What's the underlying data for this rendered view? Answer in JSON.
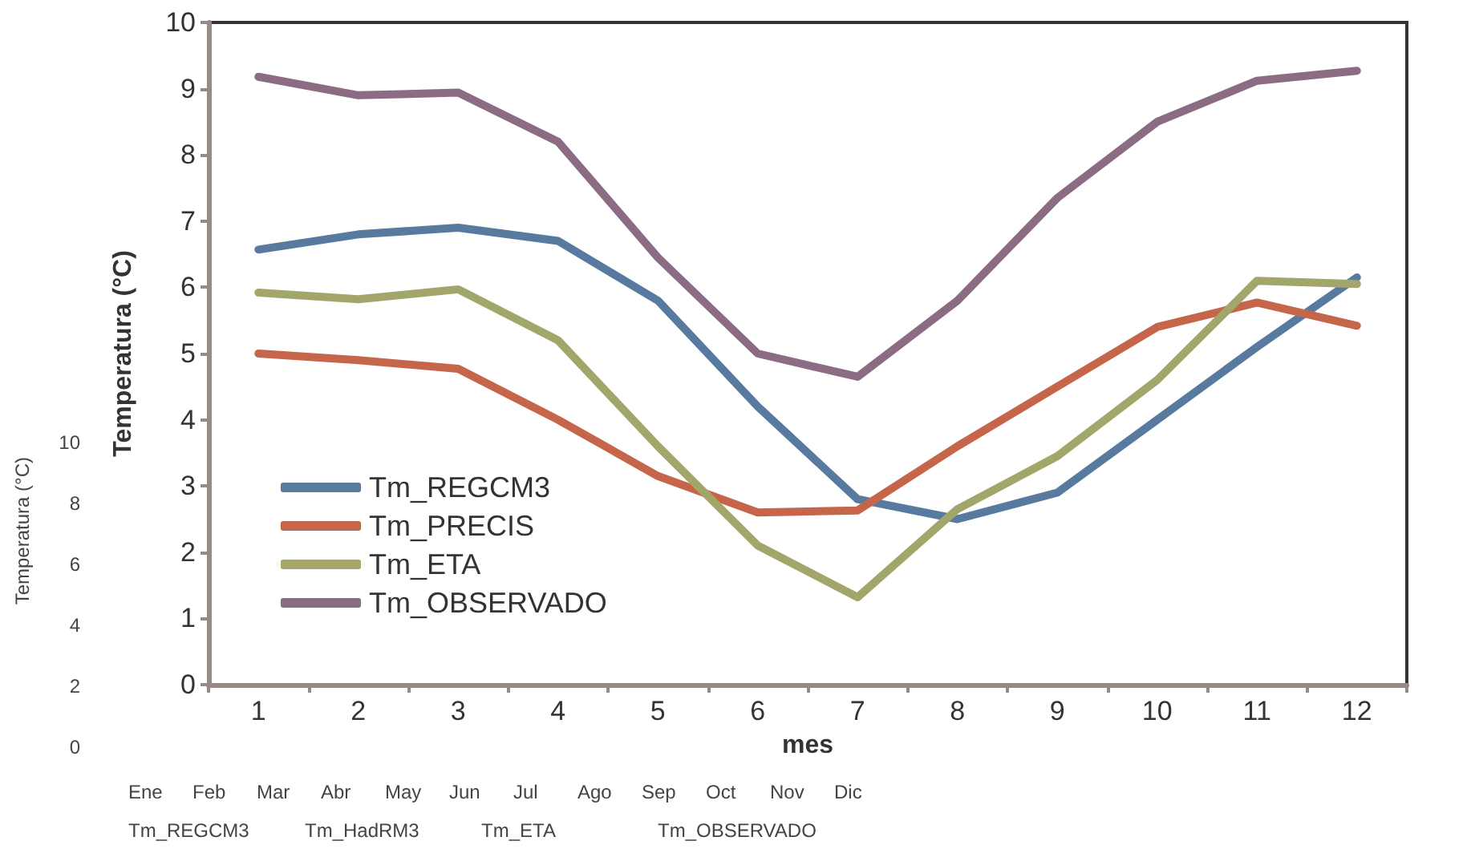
{
  "chart_data": {
    "type": "line",
    "xlabel": "mes",
    "ylabel": "Temperatura (°C)",
    "categories": [
      "1",
      "2",
      "3",
      "4",
      "5",
      "6",
      "7",
      "8",
      "9",
      "10",
      "11",
      "12"
    ],
    "series": [
      {
        "name": "Tm_REGCM3",
        "color": "#587a9e",
        "values": [
          6.57,
          6.8,
          6.9,
          6.7,
          5.8,
          4.2,
          2.8,
          2.5,
          2.9,
          4.0,
          5.1,
          6.15
        ]
      },
      {
        "name": "Tm_PRECIS",
        "color": "#c5664a",
        "values": [
          5.0,
          4.9,
          4.77,
          4.0,
          3.15,
          2.6,
          2.63,
          3.6,
          4.5,
          5.4,
          5.77,
          5.42
        ]
      },
      {
        "name": "Tm_ETA",
        "color": "#a2a66b",
        "values": [
          5.92,
          5.82,
          5.97,
          5.2,
          3.6,
          2.1,
          1.32,
          2.65,
          3.45,
          4.6,
          6.1,
          6.05
        ]
      },
      {
        "name": "Tm_OBSERVADO",
        "color": "#8b6c83",
        "values": [
          9.18,
          8.9,
          8.94,
          8.2,
          6.45,
          5.0,
          4.65,
          5.8,
          7.35,
          8.5,
          9.12,
          9.27
        ]
      }
    ],
    "ylim": [
      0,
      10
    ],
    "yticks": [
      0,
      1,
      2,
      3,
      4,
      5,
      6,
      7,
      8,
      9,
      10
    ],
    "grid": false,
    "legend": "bottom left",
    "marker": "none",
    "line_style": "solid",
    "annotations": [
      "Temperatura (°C)",
      "10",
      "8",
      "6",
      "4",
      "2",
      "0",
      "Ene",
      "Feb",
      "Mar",
      "Abr",
      "May",
      "Jun",
      "Jul",
      "Ago",
      "Sep",
      "Oct",
      "Nov",
      "Dic",
      "Tm_REGCM3",
      "Tm_HadRM3",
      "Tm_ETA",
      "Tm_OBSERVADO"
    ]
  }
}
